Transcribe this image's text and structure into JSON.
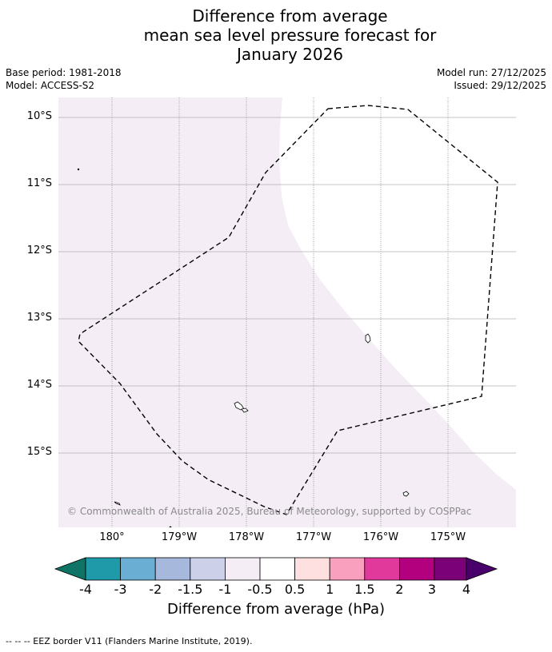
{
  "title": {
    "line1": "Difference from average",
    "line2": "mean sea level pressure forecast for",
    "line3": "January 2026"
  },
  "meta": {
    "base_period": "Base period: 1981-2018",
    "model": "Model: ACCESS-S2",
    "model_run": "Model run: 27/12/2025",
    "issued": "Issued: 29/12/2025"
  },
  "map": {
    "latitude_labels": [
      "10°S",
      "11°S",
      "12°S",
      "13°S",
      "14°S",
      "15°S"
    ],
    "longitude_labels": [
      "180°",
      "179°W",
      "178°W",
      "177°W",
      "176°W",
      "175°W"
    ],
    "copyright": "© Commonwealth of Australia 2025, Bureau of Meteorology, supported by COSPPac",
    "colors": {
      "shading_light": "#f4edf6",
      "background": "#ffffff",
      "gridline": "#b0b0b0",
      "eez_border": "#000000"
    }
  },
  "colorbar": {
    "ticks": [
      "-4",
      "-3",
      "-2",
      "-1.5",
      "-1",
      "-0.5",
      "0.5",
      "1",
      "1.5",
      "2",
      "3",
      "4"
    ],
    "colors": [
      "#0d7466",
      "#1e9aa8",
      "#6aaed4",
      "#a6b8dc",
      "#ccd0e8",
      "#f4edf6",
      "#ffffff",
      "#ffe0e0",
      "#f9a0be",
      "#e1399b",
      "#b3007e",
      "#7a0177",
      "#49006a"
    ],
    "label": "Difference from average (hPa)"
  },
  "footer": {
    "legend": "-- -- -- EEZ border V11 (Flanders Marine Institute, 2019)."
  }
}
